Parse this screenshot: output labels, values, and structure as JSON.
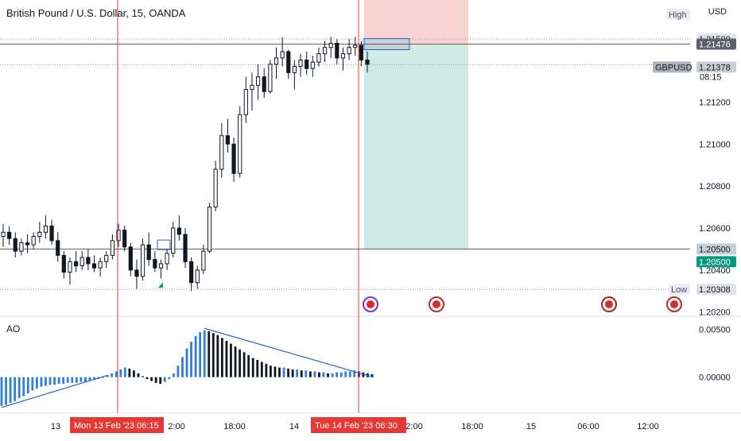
{
  "header": {
    "title": "British Pound / U.S. Dollar, 15, OANDA",
    "currency": "USD"
  },
  "price_axis": {
    "ticks": [
      {
        "label": "1.21500",
        "value": 1.215
      },
      {
        "label": "1.21200",
        "value": 1.212
      },
      {
        "label": "1.21000",
        "value": 1.21
      },
      {
        "label": "1.20800",
        "value": 1.208
      },
      {
        "label": "1.20600",
        "value": 1.206
      },
      {
        "label": "1.20400",
        "value": 1.204
      },
      {
        "label": "1.20200",
        "value": 1.202
      }
    ],
    "high_label": "High",
    "low_label": "Low",
    "high_value": "1.21500",
    "low_value": "1.20308",
    "entry_price": "1.21476",
    "current_symbol": "GBPUSD",
    "current_price": "1.21378",
    "countdown": "08:15",
    "target_price": "1.20500",
    "target_price_line": "1.20500"
  },
  "ao_axis": {
    "label": "AO",
    "ticks": [
      {
        "label": "0.00500",
        "value": 0.005
      },
      {
        "label": "0.00000",
        "value": 0.0
      }
    ]
  },
  "time_axis": {
    "ticks": [
      "13",
      "2:00",
      "18:00",
      "14",
      "2:00",
      "18:00",
      "15",
      "06:00",
      "12:00"
    ],
    "markers": [
      {
        "date": "Mon 13 Feb '23",
        "time": "06:15"
      },
      {
        "date": "Tue 14 Feb '23",
        "time": "06:30"
      }
    ]
  },
  "colors": {
    "up": "#ffffff",
    "down": "#131722",
    "outline": "#131722",
    "ao_up": "#2f7ed8",
    "ao_down": "#131722",
    "stop_zone": "#f9d3d3",
    "profit_zone": "#cfe9e3",
    "marker_line": "#e53935",
    "trendline": "#2a62d6",
    "tag_bg": "#26323a",
    "target_tag": "#089981"
  },
  "chart_data": {
    "type": "candlestick",
    "series": [
      {
        "name": "GBPUSD",
        "values": [
          [
            1.2056,
            1.2062,
            1.2051,
            1.2058
          ],
          [
            1.2058,
            1.2061,
            1.2052,
            1.2055
          ],
          [
            1.2055,
            1.2058,
            1.2046,
            1.2049
          ],
          [
            1.2049,
            1.2055,
            1.2047,
            1.2053
          ],
          [
            1.2053,
            1.2057,
            1.2048,
            1.2052
          ],
          [
            1.2052,
            1.2058,
            1.205,
            1.2056
          ],
          [
            1.2056,
            1.2063,
            1.2053,
            1.2058
          ],
          [
            1.2058,
            1.2066,
            1.2055,
            1.2061
          ],
          [
            1.2061,
            1.2064,
            1.2052,
            1.2054
          ],
          [
            1.2054,
            1.2058,
            1.2044,
            1.2047
          ],
          [
            1.2047,
            1.2049,
            1.2036,
            1.2039
          ],
          [
            1.2039,
            1.2046,
            1.2033,
            1.2044
          ],
          [
            1.2044,
            1.2049,
            1.2039,
            1.2042
          ],
          [
            1.2042,
            1.2049,
            1.204,
            1.2046
          ],
          [
            1.2046,
            1.205,
            1.204,
            1.2043
          ],
          [
            1.2043,
            1.2047,
            1.2039,
            1.2041
          ],
          [
            1.2041,
            1.2046,
            1.2037,
            1.2044
          ],
          [
            1.2044,
            1.2049,
            1.2041,
            1.2047
          ],
          [
            1.2047,
            1.2057,
            1.2045,
            1.2054
          ],
          [
            1.2054,
            1.2062,
            1.2051,
            1.2059
          ],
          [
            1.2059,
            1.2061,
            1.2049,
            1.2051
          ],
          [
            1.2051,
            1.2053,
            1.2037,
            1.204
          ],
          [
            1.204,
            1.2045,
            1.2031,
            1.2037
          ],
          [
            1.2037,
            1.2055,
            1.2035,
            1.2052
          ],
          [
            1.2052,
            1.2058,
            1.2042,
            1.2045
          ],
          [
            1.2045,
            1.2049,
            1.2039,
            1.2041
          ],
          [
            1.2041,
            1.2045,
            1.2036,
            1.2043
          ],
          [
            1.2043,
            1.205,
            1.204,
            1.2048
          ],
          [
            1.2048,
            1.2063,
            1.2046,
            1.206
          ],
          [
            1.206,
            1.2066,
            1.2054,
            1.2057
          ],
          [
            1.2057,
            1.206,
            1.2041,
            1.2044
          ],
          [
            1.2044,
            1.2046,
            1.203,
            1.2034
          ],
          [
            1.2034,
            1.2042,
            1.2031,
            1.204
          ],
          [
            1.204,
            1.2052,
            1.2038,
            1.2049
          ],
          [
            1.2049,
            1.2072,
            1.2048,
            1.207
          ],
          [
            1.207,
            1.2092,
            1.2068,
            1.2088
          ],
          [
            1.2088,
            1.211,
            1.2084,
            1.2104
          ],
          [
            1.2104,
            1.2112,
            1.2096,
            1.21
          ],
          [
            1.21,
            1.2103,
            1.2082,
            1.2086
          ],
          [
            1.2086,
            1.2118,
            1.2084,
            1.2114
          ],
          [
            1.2114,
            1.2132,
            1.211,
            1.2126
          ],
          [
            1.2126,
            1.2134,
            1.2116,
            1.2128
          ],
          [
            1.2128,
            1.2138,
            1.2121,
            1.2132
          ],
          [
            1.2132,
            1.2136,
            1.2122,
            1.2125
          ],
          [
            1.2125,
            1.214,
            1.2124,
            1.2138
          ],
          [
            1.2138,
            1.2146,
            1.2131,
            1.2141
          ],
          [
            1.2141,
            1.2151,
            1.2137,
            1.2144
          ],
          [
            1.2144,
            1.2145,
            1.2131,
            1.2134
          ],
          [
            1.2134,
            1.214,
            1.2126,
            1.2137
          ],
          [
            1.2137,
            1.2143,
            1.2132,
            1.214
          ],
          [
            1.214,
            1.2144,
            1.2133,
            1.2136
          ],
          [
            1.2136,
            1.2142,
            1.2132,
            1.2139
          ],
          [
            1.2139,
            1.2146,
            1.2137,
            1.2143
          ],
          [
            1.2143,
            1.2149,
            1.2139,
            1.2146
          ],
          [
            1.2146,
            1.2151,
            1.2141,
            1.2148
          ],
          [
            1.2148,
            1.215,
            1.2138,
            1.2141
          ],
          [
            1.2141,
            1.2146,
            1.2135,
            1.2143
          ],
          [
            1.2143,
            1.215,
            1.214,
            1.2146
          ],
          [
            1.2146,
            1.2151,
            1.2142,
            1.2147
          ],
          [
            1.2147,
            1.2149,
            1.2137,
            1.214
          ],
          [
            1.214,
            1.2144,
            1.2134,
            1.2138
          ]
        ]
      }
    ],
    "indicator": {
      "name": "AO",
      "values": [
        -0.003,
        -0.0029,
        -0.0027,
        -0.0025,
        -0.0022,
        -0.002,
        -0.0017,
        -0.0014,
        -0.0012,
        -0.001,
        -0.0009,
        -0.0008,
        -0.0008,
        -0.0007,
        -0.0007,
        -0.0006,
        -0.0006,
        -0.0006,
        -0.0005,
        -0.0005,
        -0.0004,
        -0.0003,
        -0.0002,
        0.0,
        0.0002,
        0.0004,
        0.0006,
        0.0008,
        0.001,
        0.0009,
        0.0007,
        0.0004,
        0.0001,
        -0.0002,
        -0.0004,
        -0.0006,
        -0.0007,
        -0.0005,
        -0.0002,
        0.0004,
        0.0012,
        0.0021,
        0.003,
        0.0037,
        0.0043,
        0.0047,
        0.0049,
        0.0048,
        0.0046,
        0.0044,
        0.0041,
        0.0038,
        0.0035,
        0.0032,
        0.0029,
        0.0026,
        0.0023,
        0.002,
        0.0018,
        0.0016,
        0.0014,
        0.0012,
        0.0011,
        0.001,
        0.001,
        0.0009,
        0.0008,
        0.0008,
        0.0007,
        0.0007,
        0.0006,
        0.0006,
        0.0005,
        0.0005,
        0.0004,
        0.0004,
        0.0005,
        0.0005,
        0.0006,
        0.0006,
        0.0007,
        0.0006,
        0.0005,
        0.0004,
        0.0003
      ]
    },
    "zones": {
      "stop": [
        1.21476,
        1.2175
      ],
      "profit": [
        1.205,
        1.21476
      ]
    },
    "ylim": [
      1.2018,
      1.2158
    ],
    "ao_ylim": [
      -0.0036,
      0.0062
    ],
    "grid": false
  }
}
